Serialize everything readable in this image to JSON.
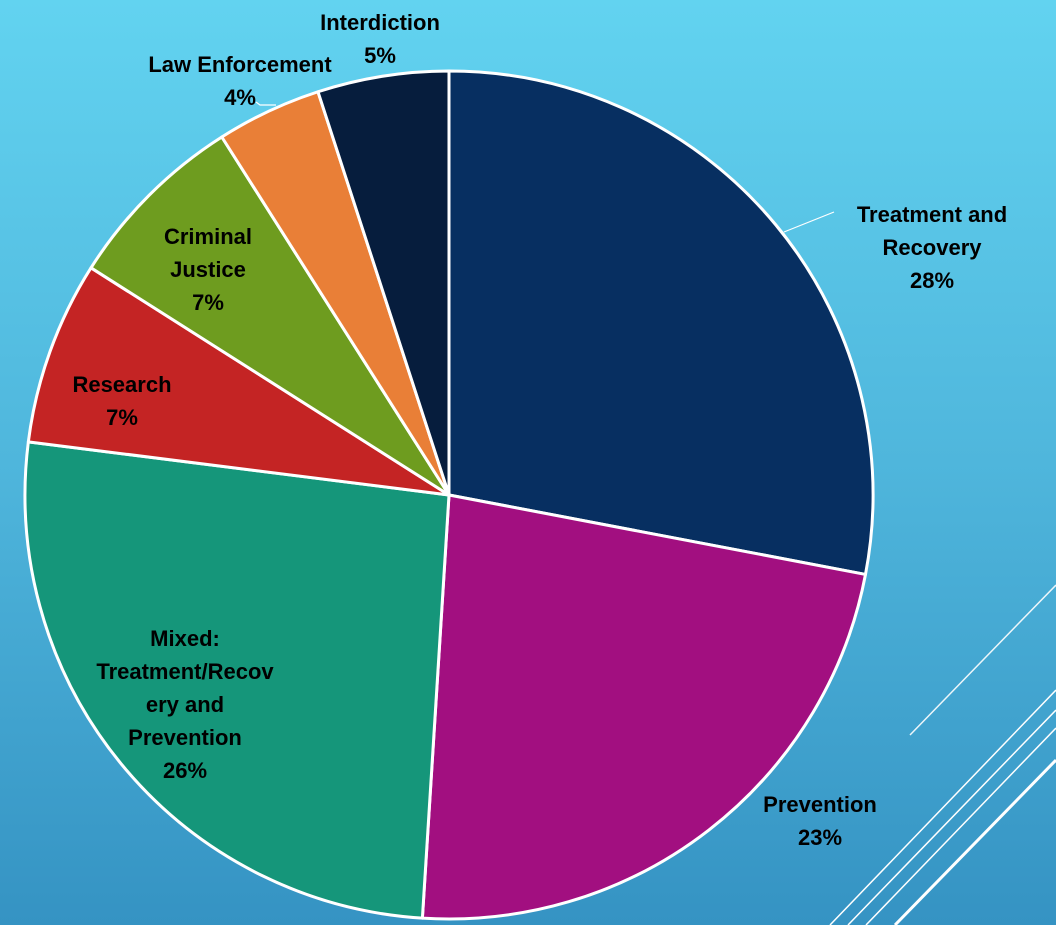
{
  "chart_data": {
    "type": "pie",
    "title": "",
    "slices": [
      {
        "label_lines": [
          "Treatment and",
          "Recovery"
        ],
        "percent_label": "28%",
        "value": 28,
        "color": "#072f61"
      },
      {
        "label_lines": [
          "Prevention"
        ],
        "percent_label": "23%",
        "value": 23,
        "color": "#a20f80"
      },
      {
        "label_lines": [
          "Mixed:",
          "Treatment/Recov",
          "ery and",
          "Prevention"
        ],
        "percent_label": "26%",
        "value": 26,
        "color": "#15967a"
      },
      {
        "label_lines": [
          "Research"
        ],
        "percent_label": "7%",
        "value": 7,
        "color": "#c42424"
      },
      {
        "label_lines": [
          "Criminal",
          "Justice"
        ],
        "percent_label": "7%",
        "value": 7,
        "color": "#6e9c1f"
      },
      {
        "label_lines": [
          "Law Enforcement"
        ],
        "percent_label": "4%",
        "value": 4,
        "color": "#e97f37"
      },
      {
        "label_lines": [
          "Interdiction"
        ],
        "percent_label": "5%",
        "value": 5,
        "color": "#061d3d"
      }
    ],
    "start_angle_deg": 0,
    "direction": "clockwise",
    "slice_border_color": "#ffffff",
    "legend": "none"
  },
  "theme": {
    "background_top": "#62d3f0",
    "background_bottom": "#3593c3",
    "decoration_line_color": "#ffffff"
  }
}
